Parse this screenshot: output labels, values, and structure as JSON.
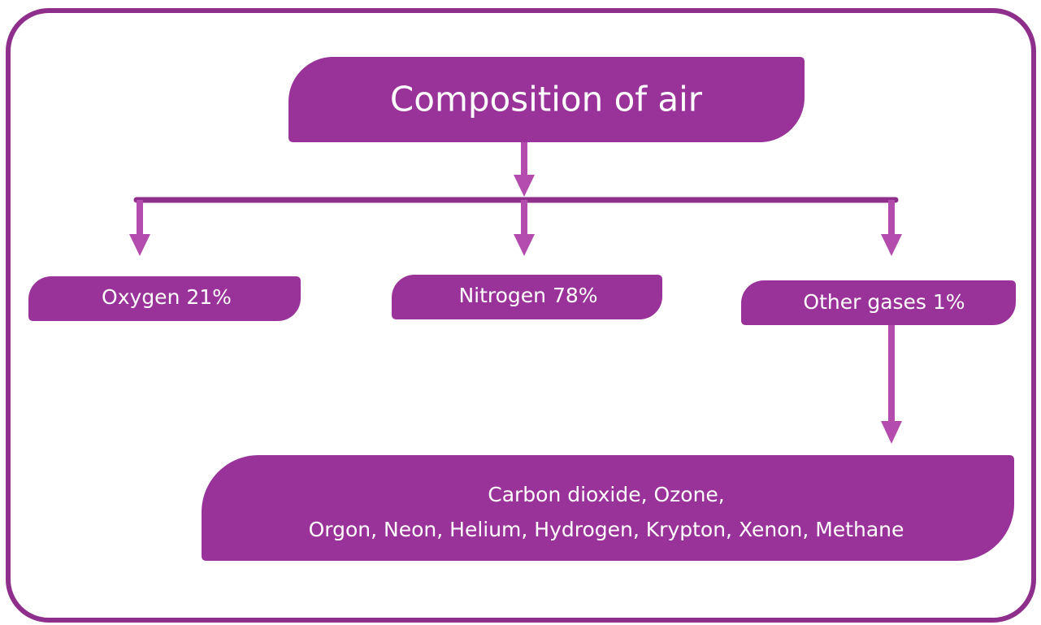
{
  "nodes": [
    {
      "label": "Composition of air"
    },
    {
      "label": "Oxygen 21%"
    },
    {
      "label": "Nitrogen 78%"
    },
    {
      "label": "Other gases 1%"
    },
    {
      "lines": [
        "Carbon dioxide, Ozone,",
        "Orgon, Neon, Helium, Hydrogen, Krypton, Xenon, Methane"
      ]
    }
  ]
}
